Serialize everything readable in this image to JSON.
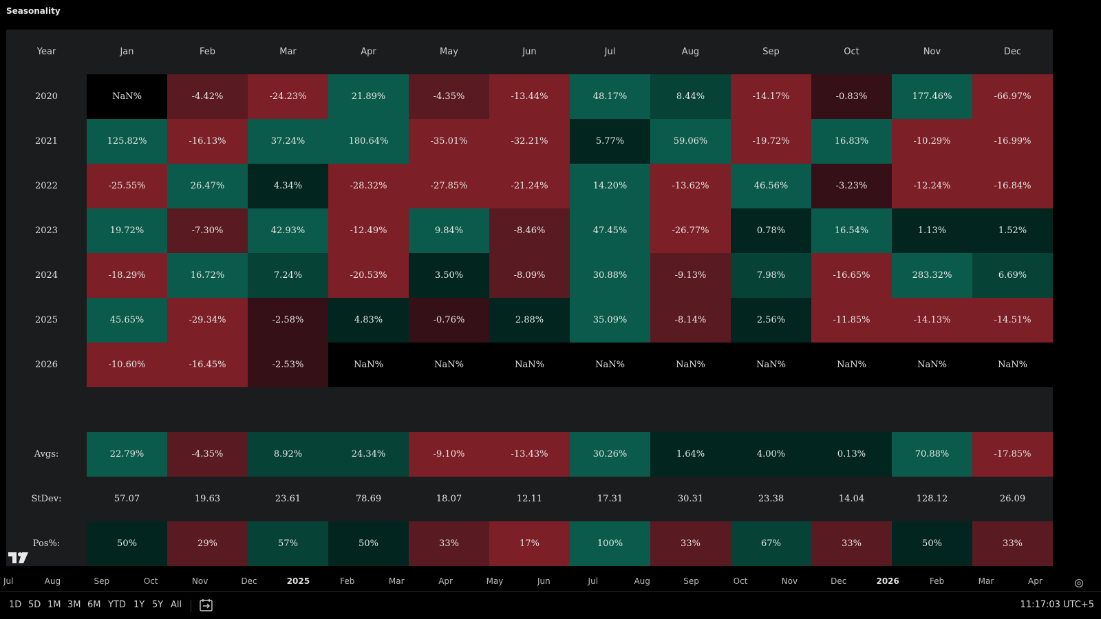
{
  "title": "Seasonality",
  "colors": {
    "positive_strong": "#0b5b4c",
    "positive_mid": "#064236",
    "positive_weak": "#02261f",
    "negative_strong": "#7d1f27",
    "negative_mid": "#5a1a21",
    "negative_weak": "#351117",
    "nan": "#000000",
    "panel_bg": "#1b1c1e"
  },
  "chart_data": {
    "type": "heatmap",
    "title": "Seasonality",
    "columns": [
      "Year",
      "Jan",
      "Feb",
      "Mar",
      "Apr",
      "May",
      "Jun",
      "Jul",
      "Aug",
      "Sep",
      "Oct",
      "Nov",
      "Dec"
    ],
    "rows": [
      {
        "year": "2020",
        "values": [
          "NaN%",
          "-4.42%",
          "-24.23%",
          "21.89%",
          "-4.35%",
          "-13.44%",
          "48.17%",
          "8.44%",
          "-14.17%",
          "-0.83%",
          "177.46%",
          "-66.97%"
        ],
        "levels": [
          0,
          -2,
          -3,
          3,
          -2,
          -3,
          3,
          2,
          -3,
          -1,
          3,
          -3
        ]
      },
      {
        "year": "2021",
        "values": [
          "125.82%",
          "-16.13%",
          "37.24%",
          "180.64%",
          "-35.01%",
          "-32.21%",
          "5.77%",
          "59.06%",
          "-19.72%",
          "16.83%",
          "-10.29%",
          "-16.99%"
        ],
        "levels": [
          3,
          -3,
          3,
          3,
          -3,
          -3,
          1,
          3,
          -3,
          3,
          -3,
          -3
        ]
      },
      {
        "year": "2022",
        "values": [
          "-25.55%",
          "26.47%",
          "4.34%",
          "-28.32%",
          "-27.85%",
          "-21.24%",
          "14.20%",
          "-13.62%",
          "46.56%",
          "-3.23%",
          "-12.24%",
          "-16.84%"
        ],
        "levels": [
          -3,
          3,
          1,
          -3,
          -3,
          -3,
          3,
          -3,
          3,
          -1,
          -3,
          -3
        ]
      },
      {
        "year": "2023",
        "values": [
          "19.72%",
          "-7.30%",
          "42.93%",
          "-12.49%",
          "9.84%",
          "-8.46%",
          "47.45%",
          "-26.77%",
          "0.78%",
          "16.54%",
          "1.13%",
          "1.52%"
        ],
        "levels": [
          3,
          -2,
          3,
          -3,
          3,
          -2,
          3,
          -3,
          1,
          3,
          1,
          1
        ]
      },
      {
        "year": "2024",
        "values": [
          "-18.29%",
          "16.72%",
          "7.24%",
          "-20.53%",
          "3.50%",
          "-8.09%",
          "30.88%",
          "-9.13%",
          "7.98%",
          "-16.65%",
          "283.32%",
          "6.69%"
        ],
        "levels": [
          -3,
          3,
          2,
          -3,
          1,
          -2,
          3,
          -2,
          2,
          -3,
          3,
          2
        ]
      },
      {
        "year": "2025",
        "values": [
          "45.65%",
          "-29.34%",
          "-2.58%",
          "4.83%",
          "-0.76%",
          "2.88%",
          "35.09%",
          "-8.14%",
          "2.56%",
          "-11.85%",
          "-14.13%",
          "-14.51%"
        ],
        "levels": [
          3,
          -3,
          -1,
          1,
          -1,
          1,
          3,
          -2,
          1,
          -3,
          -3,
          -3
        ]
      },
      {
        "year": "2026",
        "values": [
          "-10.60%",
          "-16.45%",
          "-2.53%",
          "NaN%",
          "NaN%",
          "NaN%",
          "NaN%",
          "NaN%",
          "NaN%",
          "NaN%",
          "NaN%",
          "NaN%"
        ],
        "levels": [
          -3,
          -3,
          -1,
          0,
          0,
          0,
          0,
          0,
          0,
          0,
          0,
          0
        ]
      }
    ],
    "summary": [
      {
        "label": "Avgs:",
        "values": [
          "22.79%",
          "-4.35%",
          "8.92%",
          "24.34%",
          "-9.10%",
          "-13.43%",
          "30.26%",
          "1.64%",
          "4.00%",
          "0.13%",
          "70.88%",
          "-17.85%"
        ],
        "levels": [
          3,
          -2,
          2,
          2,
          -3,
          -3,
          3,
          1,
          1,
          1,
          3,
          -3
        ]
      },
      {
        "label": "StDev:",
        "values": [
          "57.07",
          "19.63",
          "23.61",
          "78.69",
          "18.07",
          "12.11",
          "17.31",
          "30.31",
          "23.38",
          "14.04",
          "128.12",
          "26.09"
        ],
        "levels": [
          9,
          9,
          9,
          9,
          9,
          9,
          9,
          9,
          9,
          9,
          9,
          9
        ]
      },
      {
        "label": "Pos%:",
        "values": [
          "50%",
          "29%",
          "57%",
          "50%",
          "33%",
          "17%",
          "100%",
          "33%",
          "67%",
          "33%",
          "50%",
          "33%"
        ],
        "levels": [
          1,
          -2,
          2,
          1,
          -2,
          -3,
          3,
          -2,
          2,
          -2,
          1,
          -2
        ]
      }
    ]
  },
  "time_axis": {
    "ticks": [
      "Jul",
      "Aug",
      "Sep",
      "Oct",
      "Nov",
      "Dec",
      "2025",
      "Feb",
      "Mar",
      "Apr",
      "May",
      "Jun",
      "Jul",
      "Aug",
      "Sep",
      "Oct",
      "Nov",
      "Dec",
      "2026",
      "Feb",
      "Mar",
      "Apr"
    ],
    "bold": [
      "2025",
      "2026"
    ]
  },
  "bottom_bar": {
    "ranges": [
      "1D",
      "5D",
      "1M",
      "3M",
      "6M",
      "YTD",
      "1Y",
      "5Y",
      "All"
    ],
    "clock": "11:17:03 UTC+5"
  },
  "icons": {
    "logo": "tradingview-logo",
    "compare": "date-range-icon",
    "settings": "settings-gear-icon"
  }
}
